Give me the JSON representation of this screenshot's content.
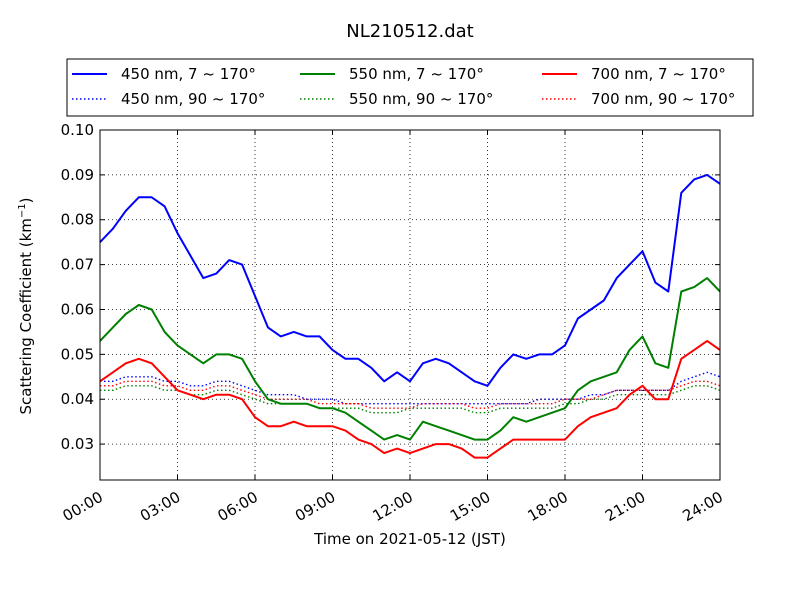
{
  "chart_data": {
    "type": "line",
    "title": "NL210512.dat",
    "xlabel": "Time on 2021-05-12 (JST)",
    "ylabel_main": "Scattering Coefficient (km",
    "ylabel_sup": "−1",
    "ylabel_close": ")",
    "xlim": [
      0,
      24
    ],
    "ylim": [
      0.022,
      0.1
    ],
    "x_ticks": [
      {
        "value": 0,
        "label": "00:00"
      },
      {
        "value": 3,
        "label": "03:00"
      },
      {
        "value": 6,
        "label": "06:00"
      },
      {
        "value": 9,
        "label": "09:00"
      },
      {
        "value": 12,
        "label": "12:00"
      },
      {
        "value": 15,
        "label": "15:00"
      },
      {
        "value": 18,
        "label": "18:00"
      },
      {
        "value": 21,
        "label": "21:00"
      },
      {
        "value": 24,
        "label": "24:00"
      }
    ],
    "y_ticks": [
      {
        "value": 0.03,
        "label": "0.03"
      },
      {
        "value": 0.04,
        "label": "0.04"
      },
      {
        "value": 0.05,
        "label": "0.05"
      },
      {
        "value": 0.06,
        "label": "0.06"
      },
      {
        "value": 0.07,
        "label": "0.07"
      },
      {
        "value": 0.08,
        "label": "0.08"
      },
      {
        "value": 0.09,
        "label": "0.09"
      },
      {
        "value": 0.1,
        "label": "0.10"
      }
    ],
    "grid": true,
    "legend_position": "top, above plot",
    "series": [
      {
        "name": "450 nm, 7 ~ 170°",
        "color": "#0000ff",
        "style": "solid",
        "x": [
          0,
          0.5,
          1,
          1.5,
          2,
          2.5,
          3,
          3.5,
          4,
          4.5,
          5,
          5.5,
          6,
          6.5,
          7,
          7.5,
          8,
          8.5,
          9,
          9.5,
          10,
          10.5,
          11,
          11.5,
          12,
          12.5,
          13,
          13.5,
          14,
          14.5,
          15,
          15.5,
          16,
          16.5,
          17,
          17.5,
          18,
          18.5,
          19,
          19.5,
          20,
          20.5,
          21,
          21.5,
          22,
          22.5,
          23,
          23.5,
          24
        ],
        "y": [
          0.075,
          0.078,
          0.082,
          0.085,
          0.085,
          0.083,
          0.077,
          0.072,
          0.067,
          0.068,
          0.071,
          0.07,
          0.063,
          0.056,
          0.054,
          0.055,
          0.054,
          0.054,
          0.051,
          0.049,
          0.049,
          0.047,
          0.044,
          0.046,
          0.044,
          0.048,
          0.049,
          0.048,
          0.046,
          0.044,
          0.043,
          0.047,
          0.05,
          0.049,
          0.05,
          0.05,
          0.052,
          0.058,
          0.06,
          0.062,
          0.067,
          0.07,
          0.073,
          0.066,
          0.064,
          0.086,
          0.089,
          0.09,
          0.088
        ]
      },
      {
        "name": "550 nm, 7 ~ 170°",
        "color": "#008000",
        "style": "solid",
        "x": [
          0,
          0.5,
          1,
          1.5,
          2,
          2.5,
          3,
          3.5,
          4,
          4.5,
          5,
          5.5,
          6,
          6.5,
          7,
          7.5,
          8,
          8.5,
          9,
          9.5,
          10,
          10.5,
          11,
          11.5,
          12,
          12.5,
          13,
          13.5,
          14,
          14.5,
          15,
          15.5,
          16,
          16.5,
          17,
          17.5,
          18,
          18.5,
          19,
          19.5,
          20,
          20.5,
          21,
          21.5,
          22,
          22.5,
          23,
          23.5,
          24
        ],
        "y": [
          0.053,
          0.056,
          0.059,
          0.061,
          0.06,
          0.055,
          0.052,
          0.05,
          0.048,
          0.05,
          0.05,
          0.049,
          0.044,
          0.04,
          0.039,
          0.039,
          0.039,
          0.038,
          0.038,
          0.037,
          0.035,
          0.033,
          0.031,
          0.032,
          0.031,
          0.035,
          0.034,
          0.033,
          0.032,
          0.031,
          0.031,
          0.033,
          0.036,
          0.035,
          0.036,
          0.037,
          0.038,
          0.042,
          0.044,
          0.045,
          0.046,
          0.051,
          0.054,
          0.048,
          0.047,
          0.064,
          0.065,
          0.067,
          0.064
        ]
      },
      {
        "name": "700 nm, 7 ~ 170°",
        "color": "#ff0000",
        "style": "solid",
        "x": [
          0,
          0.5,
          1,
          1.5,
          2,
          2.5,
          3,
          3.5,
          4,
          4.5,
          5,
          5.5,
          6,
          6.5,
          7,
          7.5,
          8,
          8.5,
          9,
          9.5,
          10,
          10.5,
          11,
          11.5,
          12,
          12.5,
          13,
          13.5,
          14,
          14.5,
          15,
          15.5,
          16,
          16.5,
          17,
          17.5,
          18,
          18.5,
          19,
          19.5,
          20,
          20.5,
          21,
          21.5,
          22,
          22.5,
          23,
          23.5,
          24
        ],
        "y": [
          0.044,
          0.046,
          0.048,
          0.049,
          0.048,
          0.045,
          0.042,
          0.041,
          0.04,
          0.041,
          0.041,
          0.04,
          0.036,
          0.034,
          0.034,
          0.035,
          0.034,
          0.034,
          0.034,
          0.033,
          0.031,
          0.03,
          0.028,
          0.029,
          0.028,
          0.029,
          0.03,
          0.03,
          0.029,
          0.027,
          0.027,
          0.029,
          0.031,
          0.031,
          0.031,
          0.031,
          0.031,
          0.034,
          0.036,
          0.037,
          0.038,
          0.041,
          0.043,
          0.04,
          0.04,
          0.049,
          0.051,
          0.053,
          0.051
        ]
      },
      {
        "name": "450 nm, 90 ~ 170°",
        "color": "#0000ff",
        "style": "dotted",
        "x": [
          0,
          0.5,
          1,
          1.5,
          2,
          2.5,
          3,
          3.5,
          4,
          4.5,
          5,
          5.5,
          6,
          6.5,
          7,
          7.5,
          8,
          8.5,
          9,
          9.5,
          10,
          10.5,
          11,
          11.5,
          12,
          12.5,
          13,
          13.5,
          14,
          14.5,
          15,
          15.5,
          16,
          16.5,
          17,
          17.5,
          18,
          18.5,
          19,
          19.5,
          20,
          20.5,
          21,
          21.5,
          22,
          22.5,
          23,
          23.5,
          24
        ],
        "y": [
          0.044,
          0.044,
          0.045,
          0.045,
          0.045,
          0.044,
          0.044,
          0.043,
          0.043,
          0.044,
          0.044,
          0.043,
          0.042,
          0.041,
          0.041,
          0.041,
          0.04,
          0.04,
          0.04,
          0.039,
          0.039,
          0.039,
          0.039,
          0.039,
          0.039,
          0.039,
          0.039,
          0.039,
          0.039,
          0.039,
          0.039,
          0.039,
          0.039,
          0.039,
          0.04,
          0.04,
          0.04,
          0.04,
          0.041,
          0.041,
          0.042,
          0.042,
          0.042,
          0.042,
          0.042,
          0.044,
          0.045,
          0.046,
          0.045
        ]
      },
      {
        "name": "550 nm, 90 ~ 170°",
        "color": "#008000",
        "style": "dotted",
        "x": [
          0,
          0.5,
          1,
          1.5,
          2,
          2.5,
          3,
          3.5,
          4,
          4.5,
          5,
          5.5,
          6,
          6.5,
          7,
          7.5,
          8,
          8.5,
          9,
          9.5,
          10,
          10.5,
          11,
          11.5,
          12,
          12.5,
          13,
          13.5,
          14,
          14.5,
          15,
          15.5,
          16,
          16.5,
          17,
          17.5,
          18,
          18.5,
          19,
          19.5,
          20,
          20.5,
          21,
          21.5,
          22,
          22.5,
          23,
          23.5,
          24
        ],
        "y": [
          0.042,
          0.042,
          0.043,
          0.043,
          0.043,
          0.042,
          0.042,
          0.041,
          0.041,
          0.042,
          0.042,
          0.041,
          0.04,
          0.039,
          0.039,
          0.039,
          0.039,
          0.038,
          0.038,
          0.038,
          0.038,
          0.037,
          0.037,
          0.037,
          0.038,
          0.038,
          0.038,
          0.038,
          0.038,
          0.037,
          0.037,
          0.038,
          0.038,
          0.038,
          0.038,
          0.038,
          0.039,
          0.039,
          0.04,
          0.04,
          0.041,
          0.041,
          0.041,
          0.041,
          0.041,
          0.042,
          0.043,
          0.043,
          0.042
        ]
      },
      {
        "name": "700 nm, 90 ~ 170°",
        "color": "#ff0000",
        "style": "dotted",
        "x": [
          0,
          0.5,
          1,
          1.5,
          2,
          2.5,
          3,
          3.5,
          4,
          4.5,
          5,
          5.5,
          6,
          6.5,
          7,
          7.5,
          8,
          8.5,
          9,
          9.5,
          10,
          10.5,
          11,
          11.5,
          12,
          12.5,
          13,
          13.5,
          14,
          14.5,
          15,
          15.5,
          16,
          16.5,
          17,
          17.5,
          18,
          18.5,
          19,
          19.5,
          20,
          20.5,
          21,
          21.5,
          22,
          22.5,
          23,
          23.5,
          24
        ],
        "y": [
          0.043,
          0.043,
          0.044,
          0.044,
          0.044,
          0.043,
          0.043,
          0.042,
          0.042,
          0.043,
          0.043,
          0.042,
          0.041,
          0.04,
          0.04,
          0.04,
          0.04,
          0.039,
          0.039,
          0.039,
          0.039,
          0.038,
          0.038,
          0.038,
          0.038,
          0.039,
          0.039,
          0.039,
          0.039,
          0.038,
          0.038,
          0.039,
          0.039,
          0.039,
          0.039,
          0.039,
          0.04,
          0.04,
          0.04,
          0.041,
          0.042,
          0.042,
          0.042,
          0.042,
          0.042,
          0.043,
          0.044,
          0.044,
          0.043
        ]
      }
    ]
  }
}
